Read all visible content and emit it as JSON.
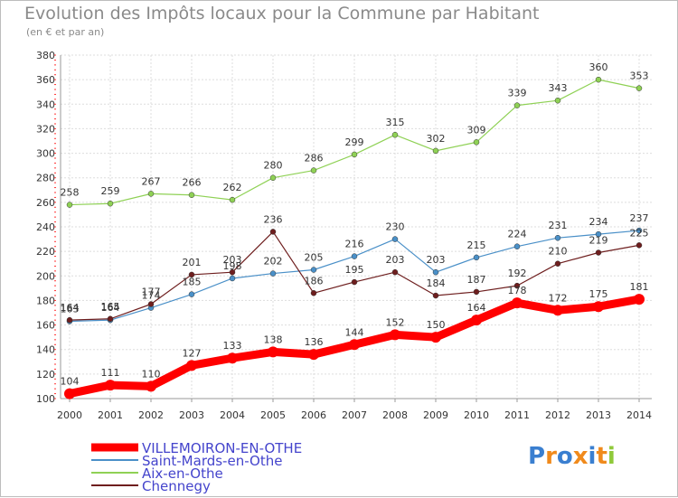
{
  "title": "Evolution des Impôts locaux pour la Commune par Habitant",
  "subtitle": "(en € et par an)",
  "logo": "Proxiti",
  "chart_data": {
    "type": "line",
    "categories": [
      "2000",
      "2001",
      "2002",
      "2003",
      "2004",
      "2005",
      "2006",
      "2007",
      "2008",
      "2009",
      "2010",
      "2011",
      "2012",
      "2013",
      "2014"
    ],
    "ylim": [
      100,
      380
    ],
    "yticks": [
      100,
      120,
      140,
      160,
      180,
      200,
      220,
      240,
      260,
      280,
      300,
      320,
      340,
      360,
      380
    ],
    "grid": true,
    "legend_position": "bottom-left",
    "series": [
      {
        "name": "VILLEMOIRON-EN-OTHE",
        "color": "#ff0000",
        "values": [
          104,
          111,
          110,
          127,
          133,
          138,
          136,
          144,
          152,
          150,
          164,
          178,
          172,
          175,
          181
        ]
      },
      {
        "name": "Saint-Mards-en-Othe",
        "color": "#4a90c8",
        "values": [
          163,
          164,
          174,
          185,
          198,
          202,
          205,
          216,
          230,
          203,
          215,
          224,
          231,
          234,
          237
        ]
      },
      {
        "name": "Aix-en-Othe",
        "color": "#8fd155",
        "values": [
          258,
          259,
          267,
          266,
          262,
          280,
          286,
          299,
          315,
          302,
          309,
          339,
          343,
          360,
          353
        ]
      },
      {
        "name": "Chennegy",
        "color": "#6e1e1e",
        "values": [
          164,
          165,
          177,
          201,
          203,
          236,
          186,
          195,
          203,
          184,
          187,
          192,
          210,
          219,
          225
        ]
      }
    ]
  }
}
